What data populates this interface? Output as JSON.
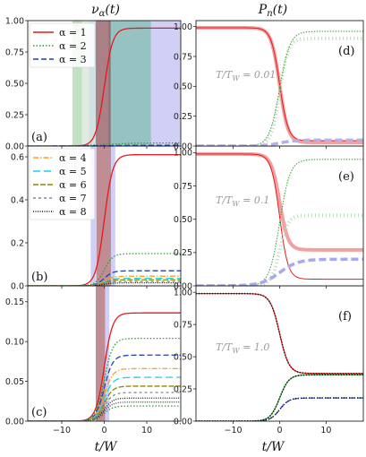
{
  "titles": {
    "left": "ν_α(t)",
    "right": "P_n(t)"
  },
  "xlabel": "t/W",
  "chart_data": [
    {
      "id": "a",
      "type": "line",
      "panel_label": "(a)",
      "xlim": [
        -18,
        18
      ],
      "ylim": [
        0,
        1.0
      ],
      "xticks": [
        "-10",
        "0",
        "10"
      ],
      "yticks": [
        "0.00",
        "0.25",
        "0.50",
        "0.75",
        "1.00"
      ],
      "yvalues": [
        0,
        0.25,
        0.5,
        0.75,
        1.0
      ],
      "shaded_bands": [
        {
          "x": [
            -7.5,
            -5.2
          ],
          "color": "#8fc98f"
        },
        {
          "x": [
            -5.2,
            -3.6
          ],
          "color": "#c9dcc9"
        },
        {
          "x": [
            -3.6,
            1.0
          ],
          "color": "#a9c9c9"
        },
        {
          "x": [
            1.0,
            11.0
          ],
          "color": "#3f8f8f"
        },
        {
          "x": [
            11.0,
            18.0
          ],
          "color": "#aaaaee"
        },
        {
          "x": [
            -2.0,
            1.5
          ],
          "color": "#8b2f3a"
        }
      ],
      "legend": [
        "α = 1",
        "α = 2",
        "α = 3"
      ],
      "series": [
        {
          "name": "α = 1",
          "final": 0.94,
          "steep": 1.0,
          "color": "#e41a1c",
          "dash": ""
        },
        {
          "name": "α = 2",
          "final": 0.025,
          "steep": 0.25,
          "color": "#2ca02c",
          "dash": "1.5,2"
        },
        {
          "name": "α = 3",
          "final": 0.006,
          "steep": 0.25,
          "color": "#1f3fbf",
          "dash": "6,3"
        }
      ]
    },
    {
      "id": "b",
      "type": "line",
      "panel_label": "(b)",
      "xlim": [
        -18,
        18
      ],
      "ylim": [
        0,
        0.65
      ],
      "xticks": [
        "-10",
        "0",
        "10"
      ],
      "yticks": [
        "0.0",
        "0.2",
        "0.4",
        "0.6"
      ],
      "yvalues": [
        0,
        0.2,
        0.4,
        0.6
      ],
      "shaded_bands": [
        {
          "x": [
            -3.2,
            -1.8
          ],
          "color": "#aaaaee"
        },
        {
          "x": [
            -1.8,
            1.6
          ],
          "color": "#8b2f3a"
        },
        {
          "x": [
            1.6,
            2.6
          ],
          "color": "#aaaaee"
        }
      ],
      "legend": [
        "α = 4",
        "α = 5",
        "α = 6",
        "α = 7",
        "α = 8"
      ],
      "series": [
        {
          "name": "α = 1",
          "final": 0.61,
          "color": "#e41a1c",
          "dash": ""
        },
        {
          "name": "α = 2",
          "final": 0.15,
          "color": "#2ca02c",
          "dash": "1.5,2"
        },
        {
          "name": "α = 3",
          "final": 0.07,
          "color": "#1f3fbf",
          "dash": "6,3"
        },
        {
          "name": "α = 4",
          "final": 0.045,
          "color": "#ff9f1a",
          "dash": "6,2,1.5,2"
        },
        {
          "name": "α = 5",
          "final": 0.035,
          "color": "#17d4e6",
          "dash": "8,4"
        },
        {
          "name": "α = 6",
          "final": 0.028,
          "color": "#8a8a00",
          "dash": "6,2"
        },
        {
          "name": "α = 7",
          "final": 0.02,
          "color": "#888888",
          "dash": "3,3"
        },
        {
          "name": "α = 8",
          "final": 0.014,
          "color": "#111111",
          "dash": "1,1.5"
        }
      ]
    },
    {
      "id": "c",
      "type": "line",
      "panel_label": "(c)",
      "xlim": [
        -18,
        18
      ],
      "ylim": [
        0,
        0.17
      ],
      "xticks": [
        "-10",
        "0",
        "10"
      ],
      "yticks": [
        "0.00",
        "0.05",
        "0.10",
        "0.15"
      ],
      "yvalues": [
        0,
        0.05,
        0.1,
        0.15
      ],
      "shaded_bands": [
        {
          "x": [
            -2.0,
            0.2
          ],
          "color": "#8b2f3a"
        },
        {
          "x": [
            0.2,
            1.2
          ],
          "color": "#aaaaee"
        }
      ],
      "series": [
        {
          "name": "α = 1",
          "final": 0.136,
          "color": "#e41a1c",
          "dash": ""
        },
        {
          "name": "α = 2",
          "final": 0.104,
          "color": "#2ca02c",
          "dash": "1.5,2"
        },
        {
          "name": "α = 3",
          "final": 0.083,
          "color": "#1f3fbf",
          "dash": "6,3"
        },
        {
          "name": "α = 4",
          "final": 0.066,
          "color": "#ff9f1a",
          "dash": "6,2,1.5,2"
        },
        {
          "name": "α = 5",
          "final": 0.055,
          "color": "#17d4e6",
          "dash": "8,4"
        },
        {
          "name": "α = 6",
          "final": 0.044,
          "color": "#8a8a00",
          "dash": "6,2"
        },
        {
          "name": "α = 7",
          "final": 0.036,
          "color": "#888888",
          "dash": "3,3"
        },
        {
          "name": "α = 8",
          "final": 0.029,
          "color": "#111111",
          "dash": "1,1.5"
        },
        {
          "name": "",
          "final": 0.024,
          "color": "#444444",
          "dash": "1,1.5"
        },
        {
          "name": "",
          "final": 0.019,
          "color": "#2ca02c",
          "dash": "1.5,2"
        }
      ]
    },
    {
      "id": "d",
      "type": "line",
      "panel_label": "(d)",
      "xlim": [
        -18,
        18
      ],
      "ylim": [
        0,
        1.05
      ],
      "xticks": [
        "-10",
        "0",
        "10"
      ],
      "yticks": [
        "0.00",
        "0.25",
        "0.50",
        "0.75",
        "1.00"
      ],
      "yvalues": [
        0,
        0.25,
        0.5,
        0.75,
        1.0
      ],
      "annotation": "T/T_W = 0.01",
      "series": [
        {
          "name": "P1 thick",
          "start": 0.99,
          "final": 0.03,
          "steep": 1.1,
          "color": "#f4a0a0",
          "width": 4,
          "dash": ""
        },
        {
          "name": "P1",
          "start": 0.99,
          "final": 0.045,
          "steep": 1.1,
          "color": "#e41a1c",
          "width": 1,
          "dash": ""
        },
        {
          "name": "P2 thick",
          "start": 0.0,
          "final": 0.9,
          "steep": 1.1,
          "color": "#b5dcb5",
          "width": 4,
          "dash": "1,3"
        },
        {
          "name": "P2",
          "start": 0.0,
          "final": 0.96,
          "steep": 0.9,
          "color": "#2ca02c",
          "width": 1,
          "dash": "1.5,1.5"
        },
        {
          "name": "P3",
          "start": 0.0,
          "final": 0.05,
          "steep": 0.6,
          "color": "#b0b0f0",
          "width": 3.5,
          "dash": "8,4"
        }
      ]
    },
    {
      "id": "e",
      "type": "line",
      "panel_label": "(e)",
      "xlim": [
        -18,
        18
      ],
      "ylim": [
        0,
        1.05
      ],
      "xticks": [
        "-10",
        "0",
        "10"
      ],
      "yticks": [
        "0.00",
        "0.25",
        "0.50",
        "0.75",
        "1.00"
      ],
      "yvalues": [
        0,
        0.25,
        0.5,
        0.75,
        1.0
      ],
      "annotation": "T/T_W = 0.1",
      "series": [
        {
          "name": "P1 thick",
          "start": 0.99,
          "final": 0.27,
          "steep": 1.1,
          "color": "#f4a0a0",
          "width": 4,
          "dash": ""
        },
        {
          "name": "P1",
          "start": 0.99,
          "final": 0.05,
          "steep": 1.1,
          "color": "#e41a1c",
          "width": 1,
          "dash": ""
        },
        {
          "name": "P2 thick",
          "start": 0.0,
          "final": 0.53,
          "steep": 1.1,
          "color": "#b5dcb5",
          "width": 4,
          "dash": "1,3"
        },
        {
          "name": "P2",
          "start": 0.0,
          "final": 0.95,
          "steep": 0.9,
          "color": "#2ca02c",
          "width": 1,
          "dash": "1.5,1.5"
        },
        {
          "name": "P3",
          "start": 0.0,
          "final": 0.2,
          "steep": 0.5,
          "color": "#a8a8f0",
          "width": 3.5,
          "dash": "8,4"
        }
      ]
    },
    {
      "id": "f",
      "type": "line",
      "panel_label": "(f)",
      "xlim": [
        -18,
        18
      ],
      "ylim": [
        0,
        1.05
      ],
      "xticks": [
        "-10",
        "0",
        "10"
      ],
      "yticks": [
        "0.00",
        "0.25",
        "0.50",
        "0.75",
        "1.00"
      ],
      "yvalues": [
        0,
        0.25,
        0.5,
        0.75,
        1.0
      ],
      "annotation": "T/T_W = 1.0",
      "series": [
        {
          "name": "P1",
          "start": 0.99,
          "final": 0.37,
          "steep": 1.0,
          "color": "#e41a1c",
          "width": 1.2,
          "dash": ""
        },
        {
          "name": "P1 dots",
          "start": 0.99,
          "final": 0.37,
          "steep": 1.0,
          "color": "#111111",
          "width": 1.6,
          "dash": "1,2"
        },
        {
          "name": "P2",
          "start": 0.0,
          "final": 0.36,
          "steep": 1.0,
          "color": "#2ca02c",
          "width": 1.2,
          "dash": ""
        },
        {
          "name": "P2 dots",
          "start": 0.0,
          "final": 0.36,
          "steep": 1.0,
          "color": "#111111",
          "width": 1.6,
          "dash": "1,2"
        },
        {
          "name": "P3",
          "start": 0.0,
          "final": 0.18,
          "steep": 1.0,
          "color": "#1f3fbf",
          "width": 1.2,
          "dash": "6,3"
        },
        {
          "name": "P3 dots",
          "start": 0.0,
          "final": 0.18,
          "steep": 1.0,
          "color": "#111111",
          "width": 1.6,
          "dash": "1,2"
        }
      ]
    }
  ]
}
